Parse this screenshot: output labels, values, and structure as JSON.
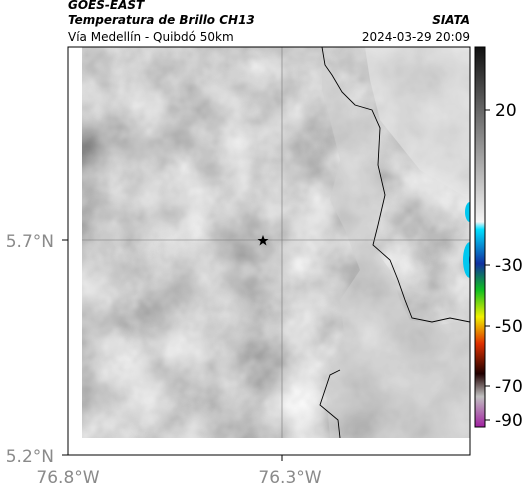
{
  "header": {
    "title": "GOES-EAST",
    "subtitle": "Temperatura de Brillo CH13",
    "source": "SIATA",
    "route": "Vía Medellín - Quibdó 50km",
    "timestamp": "2024-03-29 20:09"
  },
  "map": {
    "lat_labels": [
      "5.7°N",
      "5.2°N"
    ],
    "lon_labels": [
      "76.8°W",
      "76.3°W"
    ]
  },
  "colorbar": {
    "ticks": [
      20,
      -30,
      -50,
      -70,
      -90
    ]
  }
}
